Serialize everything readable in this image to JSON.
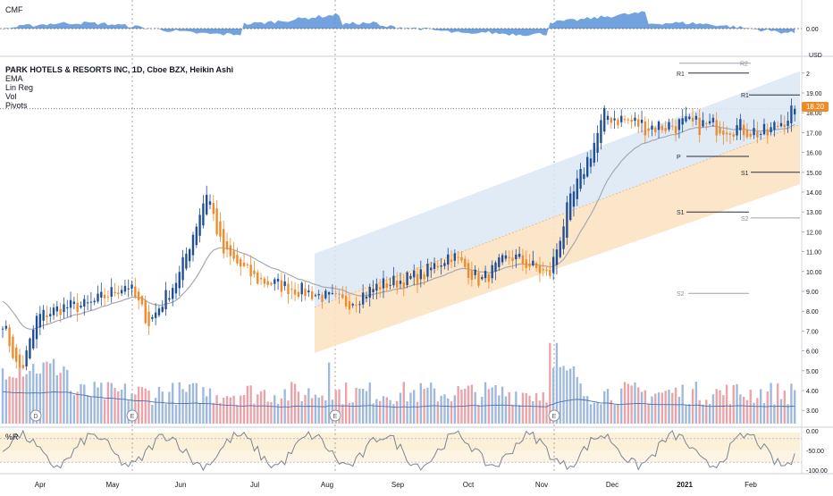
{
  "cmf_pane": {
    "title": "CMF",
    "zero_label": "0.00"
  },
  "legend": {
    "symbol": "PARK HOTELS & RESORTS INC, 1D, Cboe BZX, Heikin Ashi",
    "indicators": [
      "EMA",
      "Lin Reg",
      "Vol",
      "Pivots"
    ]
  },
  "price_axis": {
    "currency": "USD",
    "ticks": [
      "2",
      "19.00",
      "18.00",
      "17.00",
      "16.00",
      "15.00",
      "14.00",
      "13.00",
      "12.00",
      "11.00",
      "10.00",
      "9.00",
      "8.00",
      "7.00",
      "6.00",
      "5.00",
      "4.00",
      "3.00"
    ],
    "last_price": "18.20"
  },
  "r_pane": {
    "title": "%R",
    "ticks": [
      "0.00",
      "-50.00",
      "-100.00"
    ]
  },
  "time_axis": {
    "labels": [
      "Apr",
      "May",
      "Jun",
      "Jul",
      "Aug",
      "Sep",
      "Oct",
      "Nov",
      "Dec",
      "2021",
      "Feb"
    ]
  },
  "pivot_labels": [
    "R2",
    "R1",
    "R1",
    "P",
    "S1",
    "S1",
    "S2",
    "S2"
  ],
  "event_markers": [
    "D",
    "E",
    "E",
    "E"
  ],
  "colors": {
    "up": "#1f4e96",
    "down": "#ef8a2a",
    "vol_up": "#9fb9dc",
    "vol_down": "#e9a3a9",
    "cmf_fill": "#5a93d8",
    "ema": "#a6a9b2",
    "reg_upper": "#dbe7f5",
    "reg_lower": "#fbe3c4",
    "price_tag": "#f08a24",
    "r_band": "#fdf0d8",
    "r_line": "#7a8596"
  },
  "chart_data": {
    "type": "candlestick",
    "title": "PARK HOTELS & RESORTS INC, 1D, Cboe BZX, Heikin Ashi",
    "ylabel": "USD",
    "ylim": [
      2.3,
      20.5
    ],
    "x_months": [
      "Apr",
      "May",
      "Jun",
      "Jul",
      "Aug",
      "Sep",
      "Oct",
      "Nov",
      "Dec",
      "2021",
      "Feb"
    ],
    "close_path": [
      [
        "Mar start",
        7.5
      ],
      [
        "Mar 18",
        4.7
      ],
      [
        "Mar 25",
        7.7
      ],
      [
        "Apr",
        8.2
      ],
      [
        "Apr mid",
        8.3
      ],
      [
        "May",
        9.4
      ],
      [
        "May mid",
        7.4
      ],
      [
        "Jun",
        9.8
      ],
      [
        "Jun 8",
        14.1
      ],
      [
        "Jun 15",
        11.0
      ],
      [
        "Jul",
        9.6
      ],
      [
        "Jul mid",
        9.0
      ],
      [
        "Aug",
        8.4
      ],
      [
        "Aug mid",
        9.3
      ],
      [
        "Sep",
        9.8
      ],
      [
        "Sep mid",
        10.9
      ],
      [
        "Oct",
        9.5
      ],
      [
        "Oct mid",
        10.8
      ],
      [
        "Nov",
        9.8
      ],
      [
        "Nov 9",
        13.0
      ],
      [
        "Dec",
        17.9
      ],
      [
        "Dec mid",
        17.3
      ],
      [
        "2021",
        17.4
      ],
      [
        "Jan mid",
        17.3
      ],
      [
        "Feb",
        17.2
      ],
      [
        "Feb 8",
        18.2
      ]
    ],
    "last_price": 18.2,
    "pivots": {
      "R2": 20.5,
      "R1_left": 20.0,
      "R1_right": 18.9,
      "P": 15.8,
      "S1_left": 13.0,
      "S1_right": 15.0,
      "S2_left": 8.9,
      "S2_right": 12.7
    },
    "cmf_range": [
      -0.3,
      0.3
    ],
    "williams_r_range": [
      -100,
      0
    ]
  }
}
